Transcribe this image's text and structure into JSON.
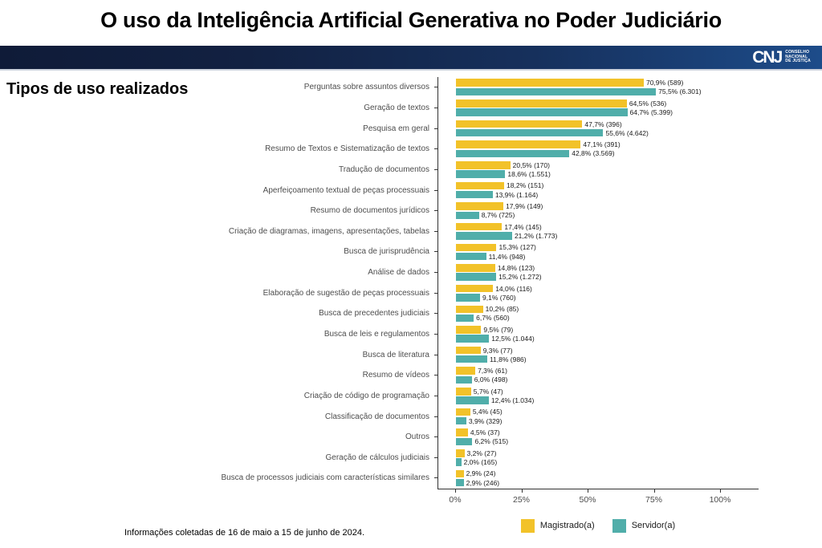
{
  "header": {
    "title": "O uso da Inteligência Artificial Generativa no Poder Judiciário",
    "logo": {
      "acronym": "CNJ",
      "caption_lines": [
        "CONSELHO",
        "NACIONAL",
        "DE JUSTIÇA"
      ]
    }
  },
  "section_title": "Tipos de uso realizados",
  "footer": {
    "note": "Informações coletadas de 16 de maio a 15 de junho de 2024."
  },
  "chart_data": {
    "type": "bar",
    "orientation": "horizontal",
    "title": "Tipos de uso realizados",
    "xlabel": "",
    "ylabel": "",
    "xlim": [
      0,
      100
    ],
    "grid": false,
    "legend_position": "bottom",
    "x_tick_percents": [
      0,
      25,
      50,
      75,
      100
    ],
    "x_tick_labels": [
      "0%",
      "25%",
      "50%",
      "75%",
      "100%"
    ],
    "categories": [
      "Perguntas sobre assuntos diversos",
      "Geração de textos",
      "Pesquisa em geral",
      "Resumo de Textos e Sistematização de textos",
      "Tradução de documentos",
      "Aperfeiçoamento textual de peças processuais",
      "Resumo de documentos jurídicos",
      "Criação de diagramas, imagens, apresentações, tabelas",
      "Busca de jurisprudência",
      "Análise de dados",
      "Elaboração de sugestão de peças processuais",
      "Busca de precedentes judiciais",
      "Busca de leis e regulamentos",
      "Busca de literatura",
      "Resumo de vídeos",
      "Criação de código de programação",
      "Classificação de documentos",
      "Outros",
      "Geração de cálculos judiciais",
      "Busca de processos judiciais com características similares"
    ],
    "series": [
      {
        "name": "Magistrado(a)",
        "color": "#F2C229",
        "values": [
          70.9,
          64.5,
          47.7,
          47.1,
          20.5,
          18.2,
          17.9,
          17.4,
          15.3,
          14.8,
          14.0,
          10.2,
          9.5,
          9.3,
          7.3,
          5.7,
          5.4,
          4.5,
          3.2,
          2.9
        ],
        "counts": [
          589,
          536,
          396,
          391,
          170,
          151,
          149,
          145,
          127,
          123,
          116,
          85,
          79,
          77,
          61,
          47,
          45,
          37,
          27,
          24
        ],
        "labels": [
          "70,9% (589)",
          "64,5% (536)",
          "47,7% (396)",
          "47,1% (391)",
          "20,5% (170)",
          "18,2% (151)",
          "17,9% (149)",
          "17,4% (145)",
          "15,3% (127)",
          "14,8% (123)",
          "14,0% (116)",
          "10,2% (85)",
          "9,5% (79)",
          "9,3% (77)",
          "7,3% (61)",
          "5,7% (47)",
          "5,4% (45)",
          "4,5% (37)",
          "3,2% (27)",
          "2,9% (24)"
        ]
      },
      {
        "name": "Servidor(a)",
        "color": "#50AEAA",
        "values": [
          75.5,
          64.7,
          55.6,
          42.8,
          18.6,
          13.9,
          8.7,
          21.2,
          11.4,
          15.2,
          9.1,
          6.7,
          12.5,
          11.8,
          6.0,
          12.4,
          3.9,
          6.2,
          2.0,
          2.9
        ],
        "counts": [
          6301,
          5399,
          4642,
          3569,
          1551,
          1164,
          725,
          1773,
          948,
          1272,
          760,
          560,
          1044,
          986,
          498,
          1034,
          329,
          515,
          165,
          246
        ],
        "labels": [
          "75,5% (6.301)",
          "64,7% (5.399)",
          "55,6% (4.642)",
          "42,8% (3.569)",
          "18,6% (1.551)",
          "13,9% (1.164)",
          "8,7% (725)",
          "21,2% (1.773)",
          "11,4% (948)",
          "15,2% (1.272)",
          "9,1% (760)",
          "6,7% (560)",
          "12,5% (1.044)",
          "11,8% (986)",
          "6,0% (498)",
          "12,4% (1.034)",
          "3,9% (329)",
          "6,2% (515)",
          "2,0% (165)",
          "2,9% (246)"
        ]
      }
    ]
  }
}
